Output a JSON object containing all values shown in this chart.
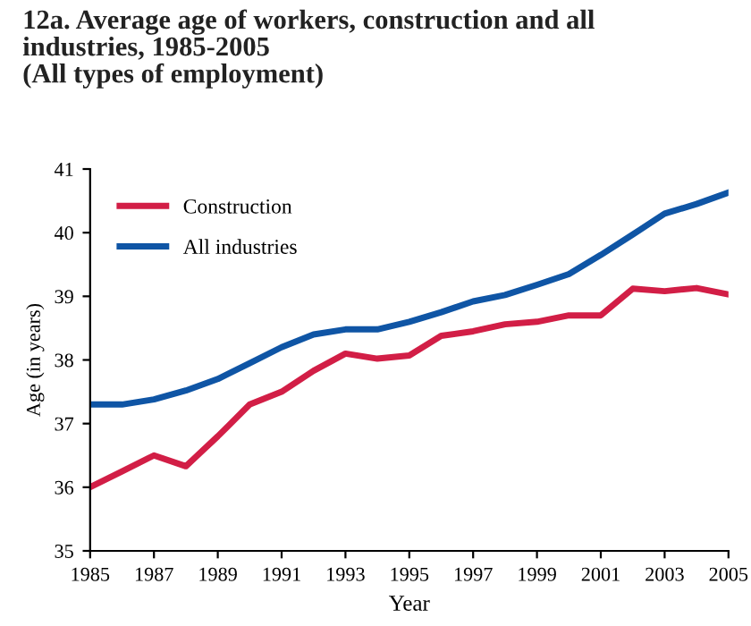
{
  "chart_data": {
    "type": "line",
    "title": "12a. Average age of workers, construction and all\nindustries, 1985-2005\n(All types of employment)",
    "xlabel": "Year",
    "ylabel": "Age (in years)",
    "x": [
      1985,
      1986,
      1987,
      1988,
      1989,
      1990,
      1991,
      1992,
      1993,
      1994,
      1995,
      1996,
      1997,
      1998,
      1999,
      2000,
      2001,
      2002,
      2003,
      2004,
      2005
    ],
    "series": [
      {
        "name": "Construction",
        "color": "#d21e46",
        "values": [
          36.0,
          36.25,
          36.5,
          36.33,
          36.8,
          37.3,
          37.5,
          37.83,
          38.1,
          38.02,
          38.07,
          38.38,
          38.45,
          38.56,
          38.6,
          38.7,
          38.7,
          39.12,
          39.08,
          39.13,
          39.03
        ]
      },
      {
        "name": "All industries",
        "color": "#0f55a5",
        "values": [
          37.3,
          37.3,
          37.38,
          37.52,
          37.7,
          37.95,
          38.2,
          38.4,
          38.48,
          38.48,
          38.6,
          38.75,
          38.92,
          39.02,
          39.18,
          39.35,
          39.65,
          39.97,
          40.3,
          40.45,
          40.63
        ]
      }
    ],
    "xlim": [
      1985,
      2005
    ],
    "xticks": [
      1985,
      1987,
      1989,
      1991,
      1993,
      1995,
      1997,
      1999,
      2001,
      2003,
      2005
    ],
    "ylim": [
      35,
      41
    ],
    "yticks": [
      35,
      36,
      37,
      38,
      39,
      40,
      41
    ],
    "grid": false,
    "legend": "top left",
    "marker": "none",
    "line_style": "solid"
  }
}
